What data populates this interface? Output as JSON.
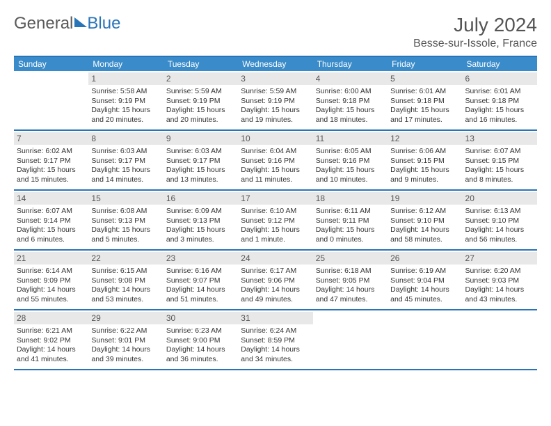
{
  "logo": {
    "part1": "General",
    "part2": "Blue"
  },
  "title": "July 2024",
  "location": "Besse-sur-Issole, France",
  "weekdays": [
    "Sunday",
    "Monday",
    "Tuesday",
    "Wednesday",
    "Thursday",
    "Friday",
    "Saturday"
  ],
  "colors": {
    "header_bar": "#3a8bc9",
    "border": "#2874b8",
    "daynum_bg": "#e8e8e8",
    "text": "#333333"
  },
  "weeks": [
    [
      {
        "n": "",
        "sunrise": "",
        "sunset": "",
        "daylight": ""
      },
      {
        "n": "1",
        "sunrise": "5:58 AM",
        "sunset": "9:19 PM",
        "daylight": "15 hours and 20 minutes."
      },
      {
        "n": "2",
        "sunrise": "5:59 AM",
        "sunset": "9:19 PM",
        "daylight": "15 hours and 20 minutes."
      },
      {
        "n": "3",
        "sunrise": "5:59 AM",
        "sunset": "9:19 PM",
        "daylight": "15 hours and 19 minutes."
      },
      {
        "n": "4",
        "sunrise": "6:00 AM",
        "sunset": "9:18 PM",
        "daylight": "15 hours and 18 minutes."
      },
      {
        "n": "5",
        "sunrise": "6:01 AM",
        "sunset": "9:18 PM",
        "daylight": "15 hours and 17 minutes."
      },
      {
        "n": "6",
        "sunrise": "6:01 AM",
        "sunset": "9:18 PM",
        "daylight": "15 hours and 16 minutes."
      }
    ],
    [
      {
        "n": "7",
        "sunrise": "6:02 AM",
        "sunset": "9:17 PM",
        "daylight": "15 hours and 15 minutes."
      },
      {
        "n": "8",
        "sunrise": "6:03 AM",
        "sunset": "9:17 PM",
        "daylight": "15 hours and 14 minutes."
      },
      {
        "n": "9",
        "sunrise": "6:03 AM",
        "sunset": "9:17 PM",
        "daylight": "15 hours and 13 minutes."
      },
      {
        "n": "10",
        "sunrise": "6:04 AM",
        "sunset": "9:16 PM",
        "daylight": "15 hours and 11 minutes."
      },
      {
        "n": "11",
        "sunrise": "6:05 AM",
        "sunset": "9:16 PM",
        "daylight": "15 hours and 10 minutes."
      },
      {
        "n": "12",
        "sunrise": "6:06 AM",
        "sunset": "9:15 PM",
        "daylight": "15 hours and 9 minutes."
      },
      {
        "n": "13",
        "sunrise": "6:07 AM",
        "sunset": "9:15 PM",
        "daylight": "15 hours and 8 minutes."
      }
    ],
    [
      {
        "n": "14",
        "sunrise": "6:07 AM",
        "sunset": "9:14 PM",
        "daylight": "15 hours and 6 minutes."
      },
      {
        "n": "15",
        "sunrise": "6:08 AM",
        "sunset": "9:13 PM",
        "daylight": "15 hours and 5 minutes."
      },
      {
        "n": "16",
        "sunrise": "6:09 AM",
        "sunset": "9:13 PM",
        "daylight": "15 hours and 3 minutes."
      },
      {
        "n": "17",
        "sunrise": "6:10 AM",
        "sunset": "9:12 PM",
        "daylight": "15 hours and 1 minute."
      },
      {
        "n": "18",
        "sunrise": "6:11 AM",
        "sunset": "9:11 PM",
        "daylight": "15 hours and 0 minutes."
      },
      {
        "n": "19",
        "sunrise": "6:12 AM",
        "sunset": "9:10 PM",
        "daylight": "14 hours and 58 minutes."
      },
      {
        "n": "20",
        "sunrise": "6:13 AM",
        "sunset": "9:10 PM",
        "daylight": "14 hours and 56 minutes."
      }
    ],
    [
      {
        "n": "21",
        "sunrise": "6:14 AM",
        "sunset": "9:09 PM",
        "daylight": "14 hours and 55 minutes."
      },
      {
        "n": "22",
        "sunrise": "6:15 AM",
        "sunset": "9:08 PM",
        "daylight": "14 hours and 53 minutes."
      },
      {
        "n": "23",
        "sunrise": "6:16 AM",
        "sunset": "9:07 PM",
        "daylight": "14 hours and 51 minutes."
      },
      {
        "n": "24",
        "sunrise": "6:17 AM",
        "sunset": "9:06 PM",
        "daylight": "14 hours and 49 minutes."
      },
      {
        "n": "25",
        "sunrise": "6:18 AM",
        "sunset": "9:05 PM",
        "daylight": "14 hours and 47 minutes."
      },
      {
        "n": "26",
        "sunrise": "6:19 AM",
        "sunset": "9:04 PM",
        "daylight": "14 hours and 45 minutes."
      },
      {
        "n": "27",
        "sunrise": "6:20 AM",
        "sunset": "9:03 PM",
        "daylight": "14 hours and 43 minutes."
      }
    ],
    [
      {
        "n": "28",
        "sunrise": "6:21 AM",
        "sunset": "9:02 PM",
        "daylight": "14 hours and 41 minutes."
      },
      {
        "n": "29",
        "sunrise": "6:22 AM",
        "sunset": "9:01 PM",
        "daylight": "14 hours and 39 minutes."
      },
      {
        "n": "30",
        "sunrise": "6:23 AM",
        "sunset": "9:00 PM",
        "daylight": "14 hours and 36 minutes."
      },
      {
        "n": "31",
        "sunrise": "6:24 AM",
        "sunset": "8:59 PM",
        "daylight": "14 hours and 34 minutes."
      },
      {
        "n": "",
        "sunrise": "",
        "sunset": "",
        "daylight": ""
      },
      {
        "n": "",
        "sunrise": "",
        "sunset": "",
        "daylight": ""
      },
      {
        "n": "",
        "sunrise": "",
        "sunset": "",
        "daylight": ""
      }
    ]
  ]
}
